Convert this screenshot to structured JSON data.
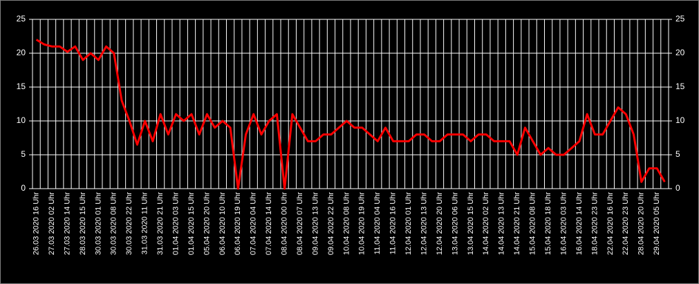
{
  "chart_data": {
    "type": "line",
    "categories": [
      "26.03 2020 16 Uhr",
      null,
      "27.03 2020 02 Uhr",
      null,
      "27.03 2020 14 Uhr",
      null,
      "28.03 2020 15 Uhr",
      null,
      "30.03 2020 01 Uhr",
      null,
      "30.03 2020 08 Uhr",
      null,
      "30.03 2020 22 Uhr",
      null,
      "31.03 2020 11 Uhr",
      null,
      "31.03 2020 21 Uhr",
      null,
      "01.04 2020 03 Uhr",
      null,
      "01.04 2020 15 Uhr",
      null,
      "05.04 2020 20 Uhr",
      null,
      "06.04 2020 10 Uhr",
      null,
      "06.04 2020 19 Uhr",
      null,
      "07.04 2020 04 Uhr",
      null,
      "07.04 2020 14 Uhr",
      null,
      "08.04 2020 00 Uhr",
      null,
      "08.04 2020 07 Uhr",
      null,
      "09.04 2020 13 Uhr",
      null,
      "09.04 2020 22 Uhr",
      null,
      "10.04 2020 08 Uhr",
      null,
      "10.04 2020 19 Uhr",
      null,
      "11.04 2020 04 Uhr",
      null,
      "11.04 2020 16 Uhr",
      null,
      "12.04 2020 01 Uhr",
      null,
      "12.04 2020 13 Uhr",
      null,
      "12.04 2020 20 Uhr",
      null,
      "13.04 2020 06 Uhr",
      null,
      "13.04 2020 15 Uhr",
      null,
      "14.04 2020 02 Uhr",
      null,
      "14.04 2020 13 Uhr",
      null,
      "14.04 2020 21 Uhr",
      null,
      "15.04 2020 08 Uhr",
      null,
      "15.04 2020 18 Uhr",
      null,
      "16.04 2020 03 Uhr",
      null,
      "16.04 2020 14 Uhr",
      null,
      "18.04 2020 23 Uhr",
      null,
      "22.04 2020 16 Uhr",
      null,
      "22.04 2020 23 Uhr",
      null,
      "28.04 2020 20 Uhr",
      null,
      "29.04 2020 05 Uhr",
      null
    ],
    "values": [
      22,
      21.3,
      21,
      21,
      20.2,
      21,
      19,
      20,
      19,
      21,
      20,
      13,
      10,
      6.5,
      10,
      7,
      11,
      8,
      11,
      10,
      11,
      8,
      11,
      9,
      10,
      9,
      0,
      8,
      11,
      8,
      10,
      11,
      0,
      11,
      9,
      7,
      7,
      8,
      8,
      9,
      10,
      9,
      9,
      8,
      7,
      9,
      7,
      7,
      7,
      8,
      8,
      7,
      7,
      8,
      8,
      8,
      7,
      8,
      8,
      7,
      7,
      7,
      5,
      9,
      7,
      5,
      6,
      5,
      5,
      6,
      7,
      11,
      8,
      8,
      10,
      12,
      11,
      8,
      1,
      3,
      3,
      1
    ],
    "color": "#ff0000",
    "ylim": [
      0,
      25
    ],
    "yticks": [
      0,
      5,
      10,
      15,
      20,
      25
    ],
    "y2lim": [
      0,
      25
    ],
    "y2ticks": [
      0,
      5,
      10,
      15,
      20,
      25
    ],
    "grid": true
  }
}
